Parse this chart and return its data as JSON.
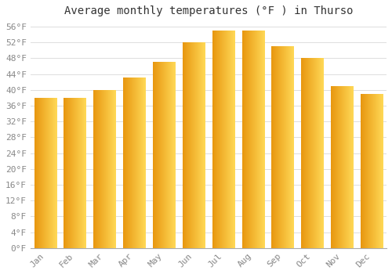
{
  "title": "Average monthly temperatures (°F ) in Thurso",
  "months": [
    "Jan",
    "Feb",
    "Mar",
    "Apr",
    "May",
    "Jun",
    "Jul",
    "Aug",
    "Sep",
    "Oct",
    "Nov",
    "Dec"
  ],
  "values": [
    38,
    38,
    40,
    43,
    47,
    52,
    55,
    55,
    51,
    48,
    41,
    39
  ],
  "bar_color_left": "#E8960A",
  "bar_color_right": "#FFD555",
  "background_color": "#FFFFFF",
  "grid_color": "#DDDDDD",
  "ytick_start": 0,
  "ytick_end": 56,
  "ytick_step": 4,
  "title_fontsize": 10,
  "tick_fontsize": 8,
  "bar_width": 0.75
}
